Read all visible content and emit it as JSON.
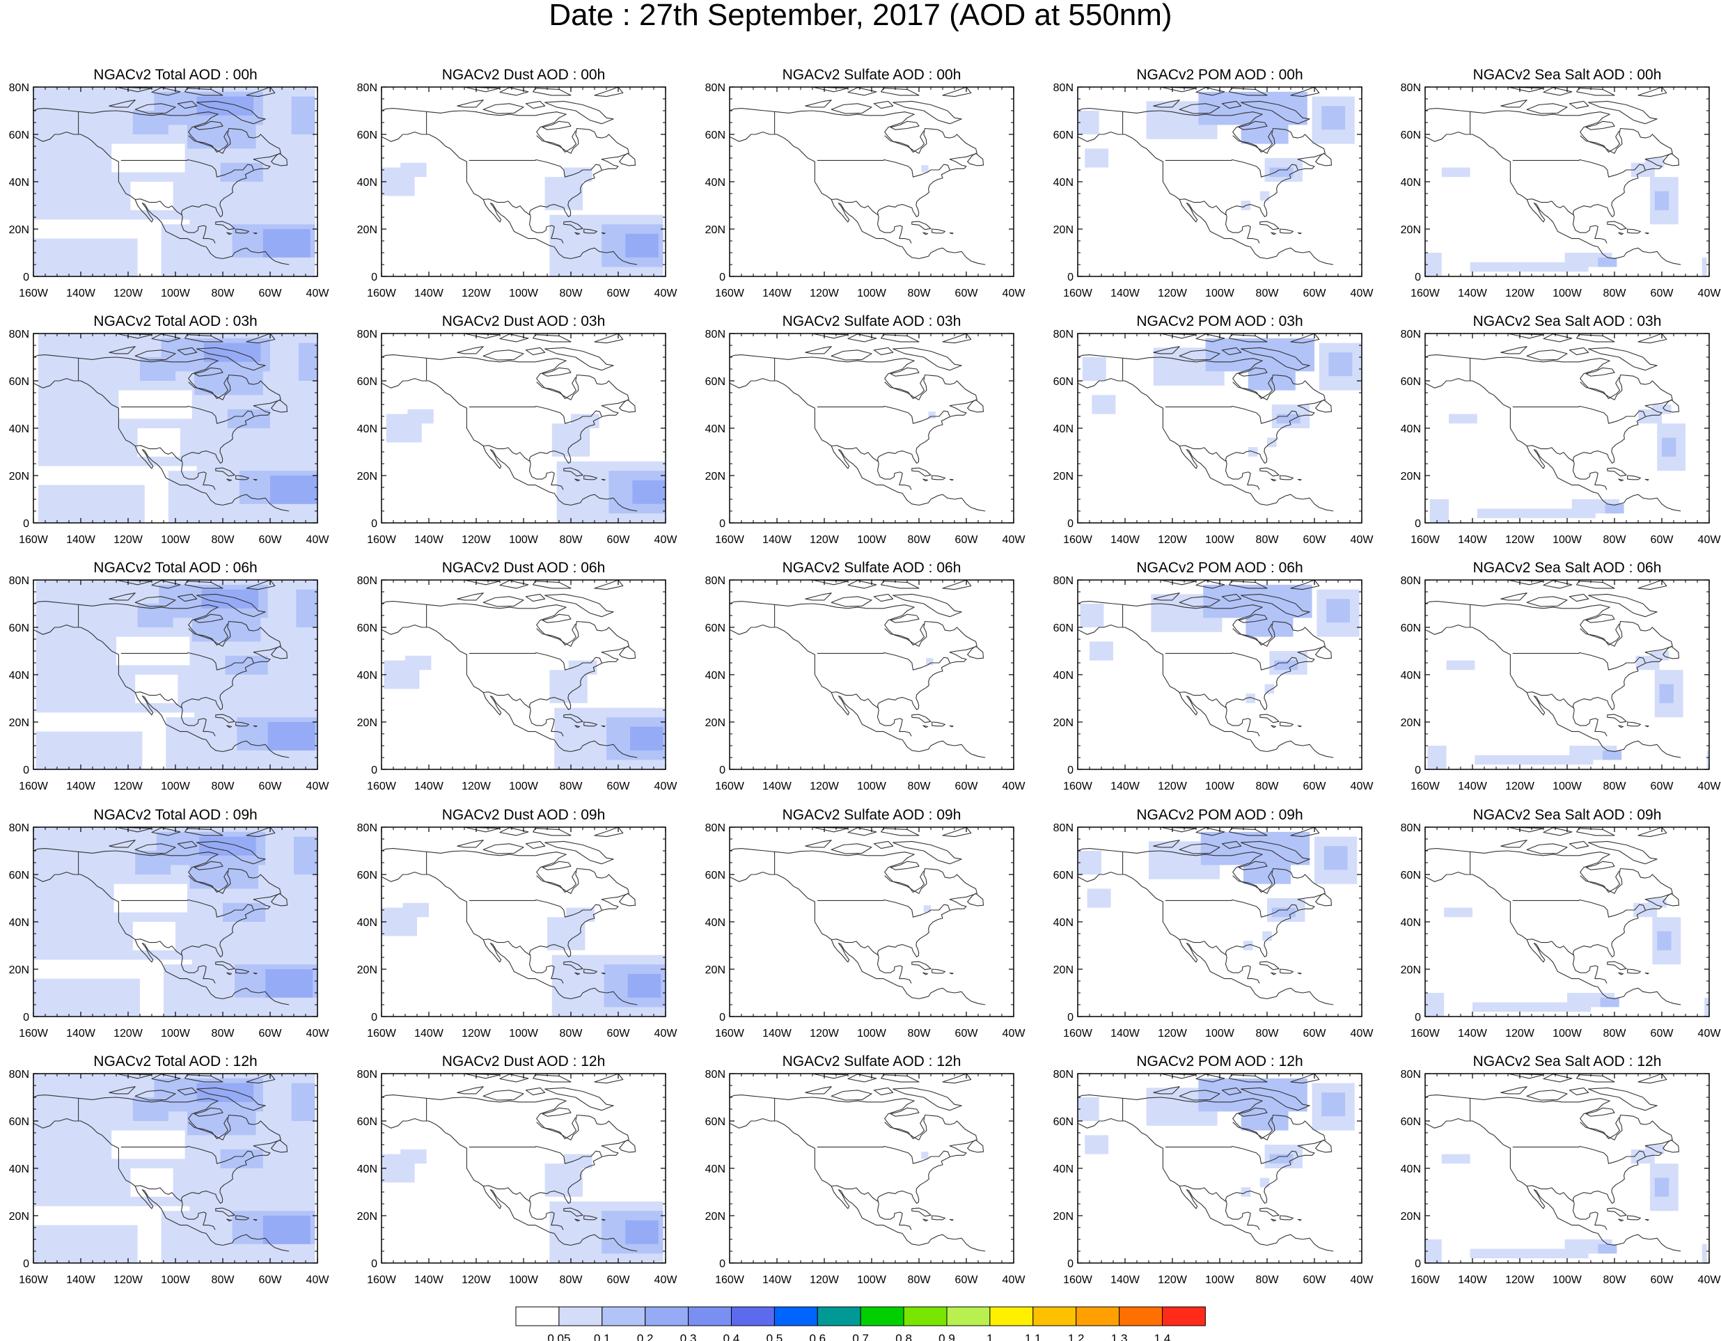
{
  "title": "Date : 27th September, 2017 (AOD at 550nm)",
  "axes": {
    "x_ticks": [
      "160W",
      "140W",
      "120W",
      "100W",
      "80W",
      "60W",
      "40W"
    ],
    "y_ticks": [
      "80N",
      "60N",
      "40N",
      "20N",
      "0"
    ],
    "lon_range": [
      -160,
      -40
    ],
    "lat_range": [
      0,
      80
    ]
  },
  "panel_titles": [
    [
      "NGACv2 Total AOD : 00h",
      "NGACv2 Dust AOD : 00h",
      "NGACv2 Sulfate AOD : 00h",
      "NGACv2 POM AOD : 00h",
      "NGACv2 Sea Salt AOD : 00h"
    ],
    [
      "NGACv2 Total AOD : 03h",
      "NGACv2 Dust AOD : 03h",
      "NGACv2 Sulfate AOD : 03h",
      "NGACv2 POM AOD : 03h",
      "NGACv2 Sea Salt AOD : 03h"
    ],
    [
      "NGACv2 Total AOD : 06h",
      "NGACv2 Dust AOD : 06h",
      "NGACv2 Sulfate AOD : 06h",
      "NGACv2 POM AOD : 06h",
      "NGACv2 Sea Salt AOD : 06h"
    ],
    [
      "NGACv2 Total AOD : 09h",
      "NGACv2 Dust AOD : 09h",
      "NGACv2 Sulfate AOD : 09h",
      "NGACv2 POM AOD : 09h",
      "NGACv2 Sea Salt  AOD : 09h"
    ],
    [
      "NGACv2 Total AOD  : 12h",
      "NGACv2 Dust AOD : 12h",
      "NGACv2 Sulfate AOD : 12h",
      "NGACv2 POM  AOD : 12h",
      "NGACv2 Sea Salt  AOD : 12h"
    ]
  ],
  "colorbar": {
    "labels": [
      "0.05",
      "0.1",
      "0.2",
      "0.3",
      "0.4",
      "0.5",
      "0.6",
      "0.7",
      "0.8",
      "0.9",
      "1",
      "1.1",
      "1.2",
      "1.3",
      "1.4"
    ],
    "colors": [
      "#ffffff",
      "#d3ddfa",
      "#b2c3f8",
      "#96abf6",
      "#7a8ff2",
      "#5c6aee",
      "#0064ff",
      "#009a96",
      "#00d000",
      "#78e600",
      "#b8f050",
      "#fff000",
      "#ffc000",
      "#ffa000",
      "#ff7000",
      "#ff2a1a"
    ]
  },
  "colors": {
    "level_0_1": "#d3ddfa",
    "level_0_2": "#b2c3f8",
    "level_0_3": "#96abf6",
    "coastline": "#333333"
  }
}
